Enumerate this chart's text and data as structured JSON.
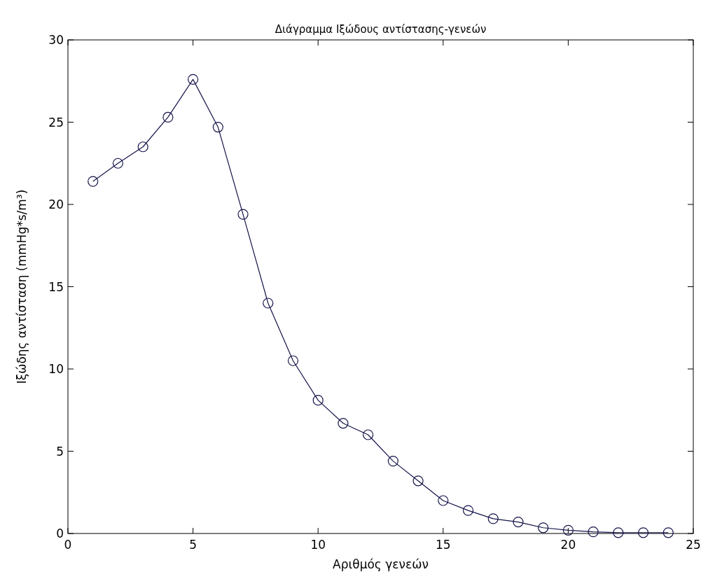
{
  "chart_data": {
    "type": "line",
    "title": "Διάγραμμα Ιξώδους αντίστασης-γενεών",
    "xlabel": "Αριθμός γενεών",
    "ylabel": "Ιξώδης αντίσταση (mmHg*s/m³)",
    "x": [
      1,
      2,
      3,
      4,
      5,
      6,
      7,
      8,
      9,
      10,
      11,
      12,
      13,
      14,
      15,
      16,
      17,
      18,
      19,
      20,
      21,
      22,
      23,
      24
    ],
    "series": [
      {
        "color": "#14144a",
        "values": [
          21.4,
          22.5,
          23.5,
          25.3,
          27.6,
          24.7,
          19.4,
          14.0,
          10.5,
          8.1,
          6.7,
          6.0,
          4.4,
          3.2,
          2.0,
          1.4,
          0.9,
          0.7,
          0.35,
          0.2,
          0.1,
          0.05,
          0.05,
          0.05
        ]
      }
    ],
    "xlim": [
      0,
      25
    ],
    "xticks": [
      0,
      5,
      10,
      15,
      20,
      25
    ],
    "ylim": [
      0,
      30
    ],
    "yticks": [
      0,
      5,
      10,
      15,
      20,
      25,
      30
    ],
    "grid": false,
    "marker": "circle",
    "line_style": "solid"
  }
}
